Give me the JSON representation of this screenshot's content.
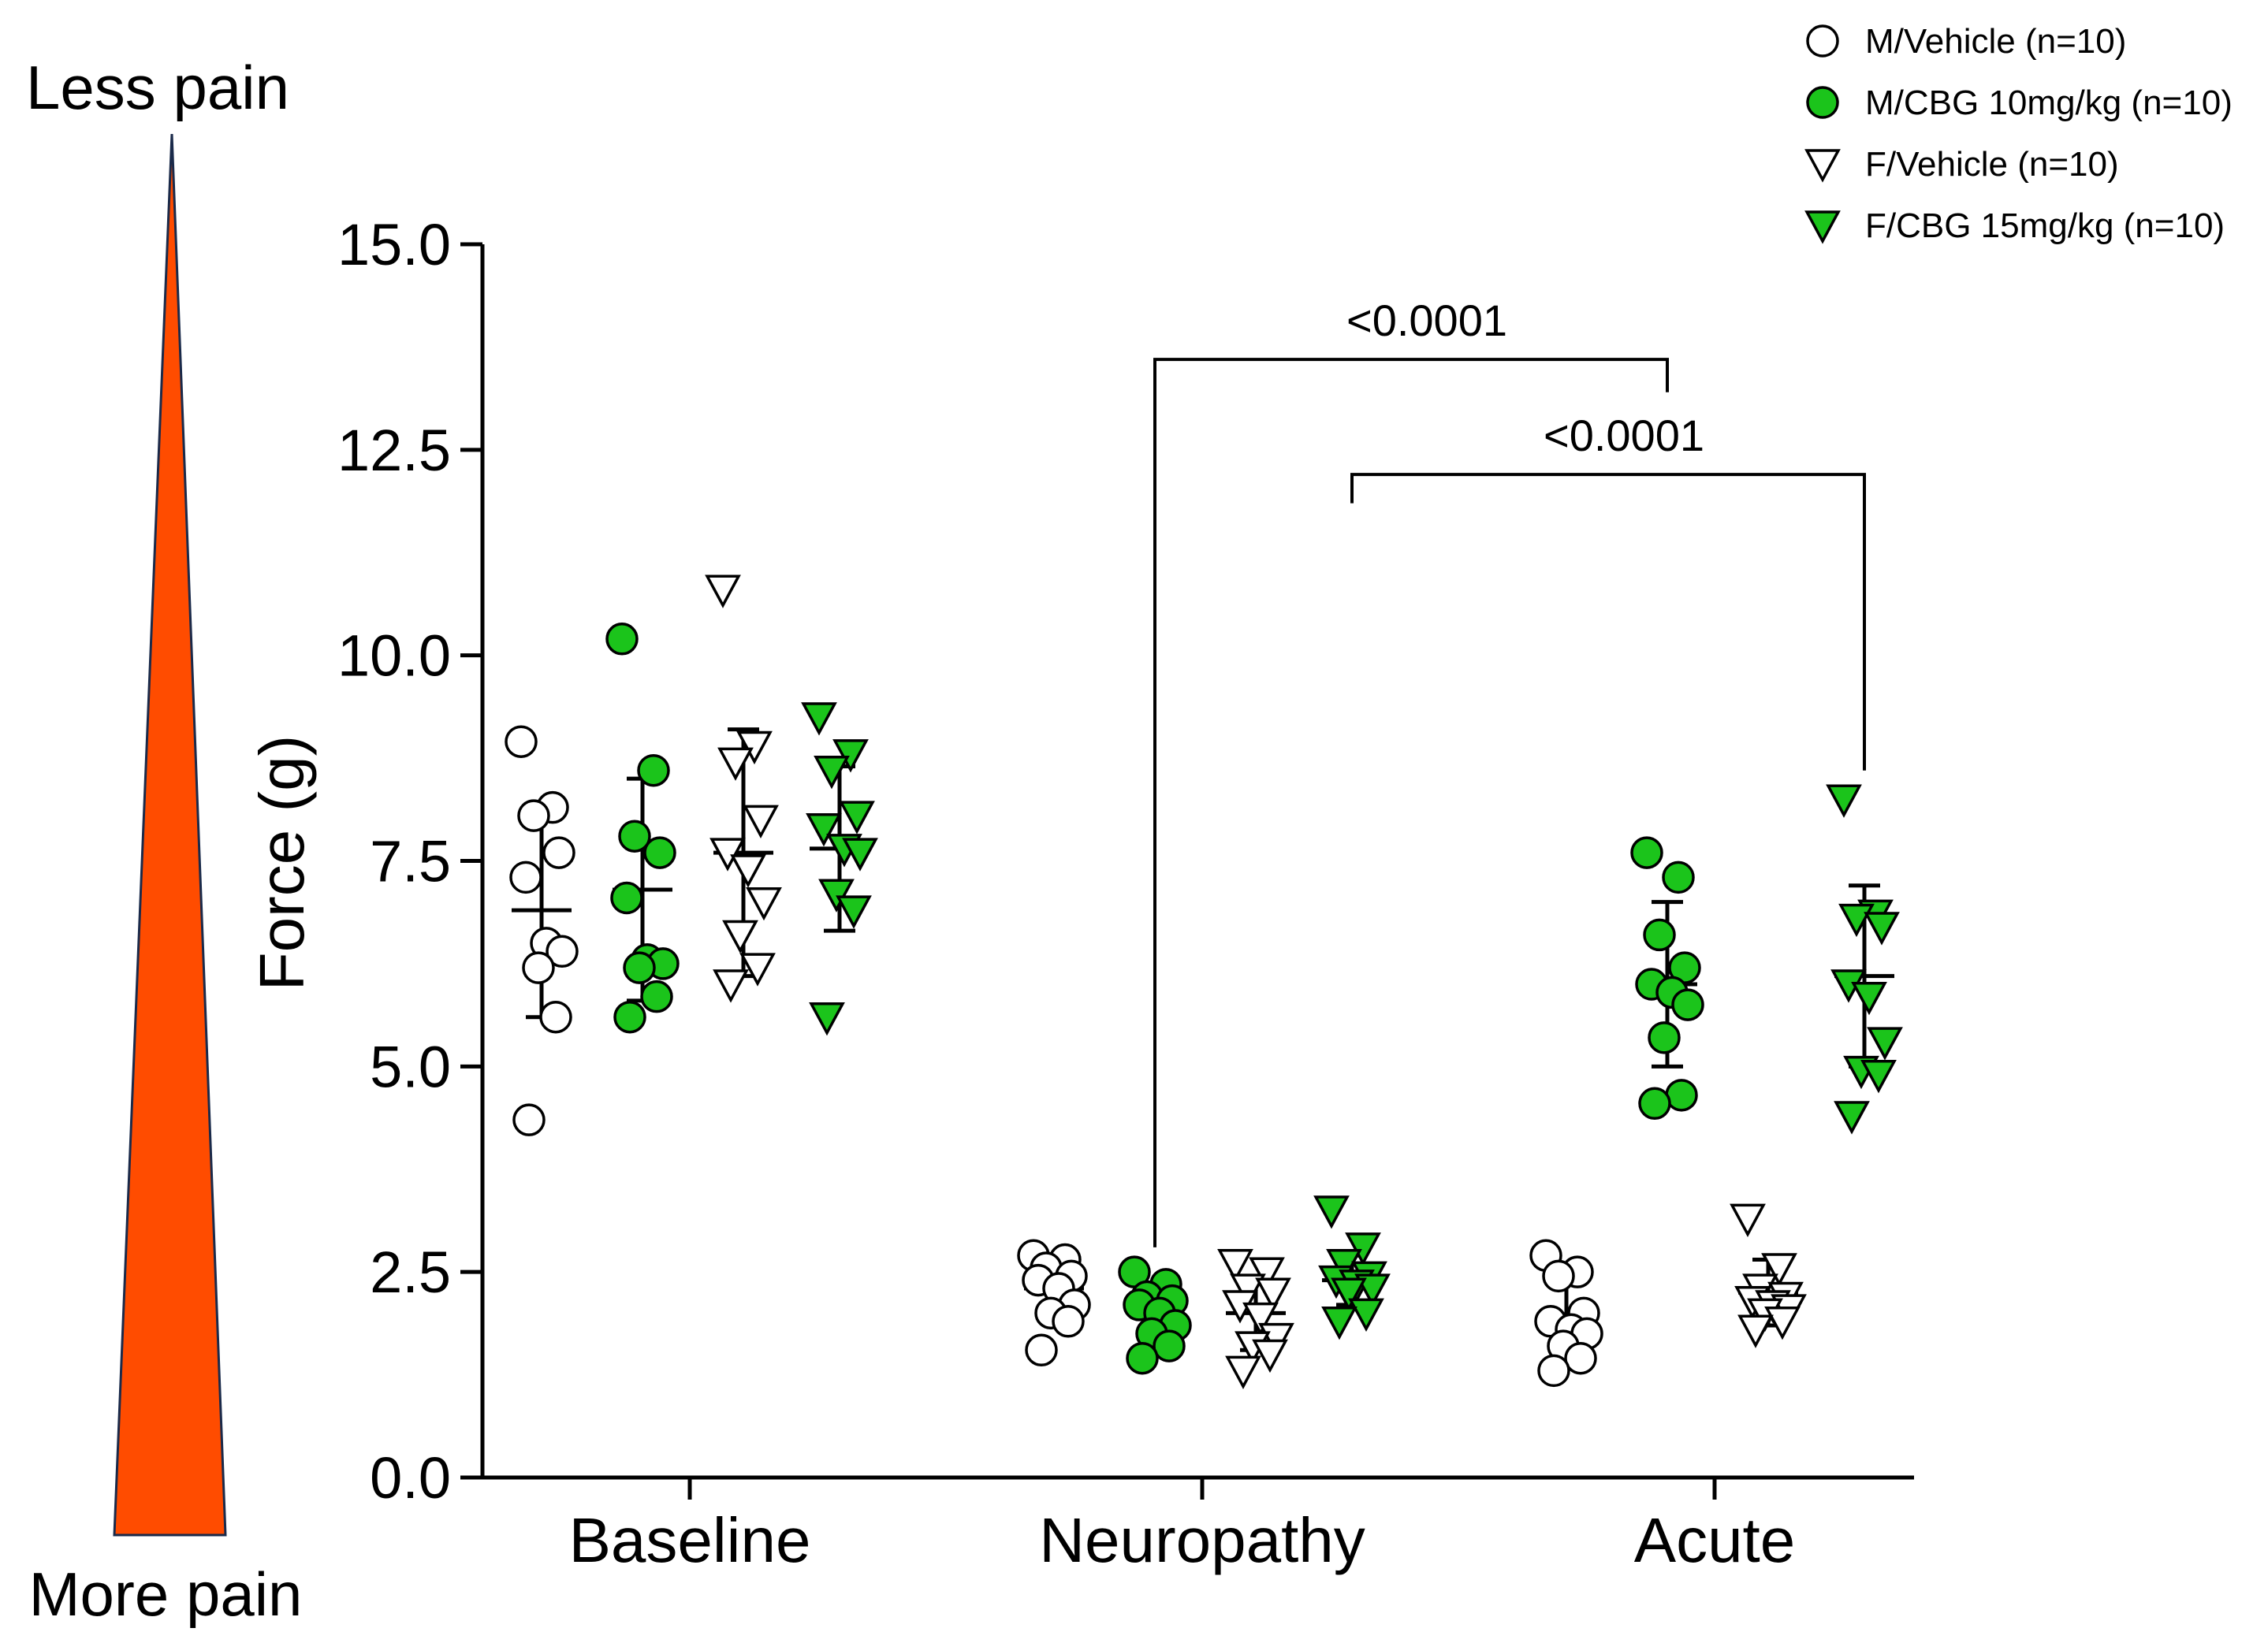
{
  "chart_data": {
    "type": "scatter",
    "ylabel": "Force (g)",
    "xlabel": "",
    "ylim": [
      0,
      15
    ],
    "yticks": [
      "0.0",
      "2.5",
      "5.0",
      "7.5",
      "10.0",
      "12.5",
      "15.0"
    ],
    "ytick_values": [
      0,
      2.5,
      5,
      7.5,
      10,
      12.5,
      15
    ],
    "categories": [
      "Baseline",
      "Neuropathy",
      "Acute"
    ],
    "legend_position": "top-right",
    "side_scale": {
      "top_label": "Less pain",
      "bottom_label": "More pain",
      "color": "#FF4C00"
    },
    "series": [
      {
        "name": "M/Vehicle (n=10)",
        "marker": "circle",
        "fill": "#FFFFFF",
        "points": [
          [
            8.95,
            8.15,
            8.05,
            7.6,
            7.3,
            6.5,
            6.4,
            6.2,
            5.6,
            4.35
          ],
          [
            2.7,
            2.65,
            2.55,
            2.45,
            2.4,
            2.3,
            2.1,
            2.0,
            1.9,
            1.55
          ],
          [
            2.7,
            2.5,
            2.45,
            2.0,
            1.9,
            1.8,
            1.75,
            1.6,
            1.45,
            1.3
          ]
        ],
        "mean": [
          6.9,
          2.3,
          1.95
        ],
        "sd": [
          1.3,
          0.3,
          0.45
        ]
      },
      {
        "name": "M/CBG 10mg/kg (n=10)",
        "marker": "circle",
        "fill": "#1BC41B",
        "points": [
          [
            10.2,
            8.6,
            7.8,
            7.6,
            7.05,
            6.3,
            6.25,
            6.2,
            5.85,
            5.6
          ],
          [
            2.5,
            2.35,
            2.2,
            2.15,
            2.1,
            2.0,
            1.85,
            1.75,
            1.6,
            1.45
          ],
          [
            7.6,
            7.3,
            6.6,
            6.2,
            6.0,
            5.9,
            5.75,
            5.35,
            4.65,
            4.55
          ]
        ],
        "mean": [
          7.15,
          2.05,
          6.0
        ],
        "sd": [
          1.35,
          0.3,
          1.0
        ]
      },
      {
        "name": "F/Vehicle (n=10)",
        "marker": "triangle-down",
        "fill": "#FFFFFF",
        "points": [
          [
            10.8,
            8.9,
            8.7,
            8.0,
            7.6,
            7.4,
            7.0,
            6.6,
            6.2,
            6.0
          ],
          [
            2.6,
            2.5,
            2.3,
            2.25,
            2.1,
            1.95,
            1.7,
            1.6,
            1.5,
            1.3
          ],
          [
            3.15,
            2.55,
            2.3,
            2.2,
            2.15,
            2.1,
            2.05,
            2.0,
            1.9,
            1.8
          ]
        ],
        "mean": [
          7.6,
          2.0,
          2.25
        ],
        "sd": [
          1.5,
          0.45,
          0.4
        ]
      },
      {
        "name": "F/CBG 15mg/kg (n=10)",
        "marker": "triangle-down",
        "fill": "#1BC41B",
        "points": [
          [
            9.25,
            8.8,
            8.6,
            8.05,
            7.9,
            7.65,
            7.6,
            7.1,
            6.9,
            5.6
          ],
          [
            3.25,
            2.8,
            2.6,
            2.45,
            2.4,
            2.35,
            2.3,
            2.25,
            2.0,
            1.9
          ],
          [
            8.25,
            6.85,
            6.8,
            6.7,
            6.0,
            5.85,
            5.3,
            4.95,
            4.9,
            4.4
          ]
        ],
        "mean": [
          7.65,
          2.4,
          6.1
        ],
        "sd": [
          1.0,
          0.3,
          1.1
        ]
      }
    ],
    "annotations": [
      {
        "label": "<0.0001",
        "from_category": 1,
        "from_series": 1,
        "to_category": 2,
        "to_series": 1,
        "bracket_y": 13.6,
        "left_y": 2.8,
        "right_y": 13.2
      },
      {
        "label": "<0.0001",
        "from_category": 1,
        "from_series": 3,
        "to_category": 2,
        "to_series": 3,
        "bracket_y": 12.2,
        "left_y": 11.85,
        "right_y": 8.6
      }
    ]
  }
}
